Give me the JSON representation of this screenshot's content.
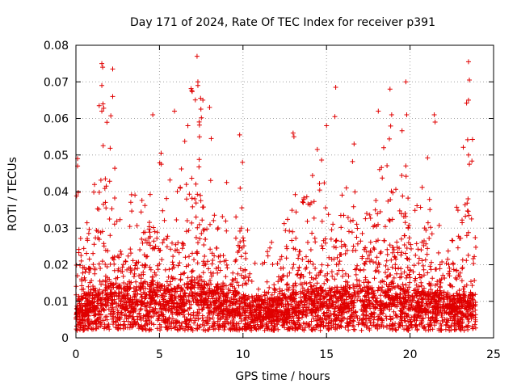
{
  "chart_data": {
    "type": "scatter",
    "title": "Day 171 of 2024, Rate Of TEC Index for receiver p391",
    "xlabel": "GPS time / hours",
    "ylabel": "ROTI / TECUs",
    "xlim": [
      0,
      25
    ],
    "ylim": [
      0,
      0.08
    ],
    "xticks": [
      0,
      5,
      10,
      15,
      20,
      25
    ],
    "yticks": [
      0,
      0.01,
      0.02,
      0.03,
      0.04,
      0.05,
      0.06,
      0.07,
      0.08
    ],
    "xtick_labels": [
      "0",
      "5",
      "10",
      "15",
      "20",
      "25"
    ],
    "ytick_labels": [
      "0",
      "0.01",
      "0.02",
      "0.03",
      "0.04",
      "0.05",
      "0.06",
      "0.07",
      "0.08"
    ],
    "grid": true,
    "marker": "+",
    "color": "#e00000",
    "x_range_of_data": [
      0,
      24
    ],
    "envelope": {
      "hours": [
        0,
        0.5,
        1,
        1.5,
        2,
        2.5,
        3,
        3.5,
        4,
        4.5,
        5,
        5.5,
        6,
        6.5,
        7,
        7.5,
        8,
        8.5,
        9,
        9.5,
        10,
        10.5,
        11,
        11.5,
        12,
        12.5,
        13,
        13.5,
        14,
        14.5,
        15,
        15.5,
        16,
        16.5,
        17,
        17.5,
        18,
        18.5,
        19,
        19.5,
        20,
        20.5,
        21,
        21.5,
        22,
        22.5,
        23,
        23.5,
        24
      ],
      "upper": [
        0.048,
        0.03,
        0.035,
        0.075,
        0.074,
        0.035,
        0.04,
        0.04,
        0.04,
        0.05,
        0.05,
        0.048,
        0.04,
        0.055,
        0.077,
        0.065,
        0.045,
        0.035,
        0.045,
        0.03,
        0.055,
        0.025,
        0.02,
        0.028,
        0.025,
        0.035,
        0.04,
        0.038,
        0.045,
        0.055,
        0.069,
        0.045,
        0.04,
        0.052,
        0.045,
        0.035,
        0.065,
        0.062,
        0.07,
        0.07,
        0.045,
        0.035,
        0.06,
        0.04,
        0.035,
        0.03,
        0.05,
        0.076,
        0.04
      ],
      "baseline": [
        0.005,
        0.006,
        0.007,
        0.008,
        0.009,
        0.009,
        0.008,
        0.008,
        0.009,
        0.01,
        0.009,
        0.008,
        0.008,
        0.009,
        0.01,
        0.01,
        0.009,
        0.008,
        0.007,
        0.007,
        0.006,
        0.005,
        0.005,
        0.005,
        0.005,
        0.006,
        0.007,
        0.007,
        0.007,
        0.008,
        0.008,
        0.008,
        0.008,
        0.009,
        0.009,
        0.008,
        0.008,
        0.009,
        0.009,
        0.008,
        0.008,
        0.007,
        0.007,
        0.007,
        0.007,
        0.007,
        0.006,
        0.006,
        0.006
      ]
    },
    "outliers": [
      [
        0.1,
        0.049
      ],
      [
        0.1,
        0.047
      ],
      [
        1.55,
        0.075
      ],
      [
        1.6,
        0.074
      ],
      [
        1.55,
        0.069
      ],
      [
        1.55,
        0.062
      ],
      [
        2.2,
        0.0735
      ],
      [
        2.2,
        0.066
      ],
      [
        4.6,
        0.061
      ],
      [
        5.1,
        0.0505
      ],
      [
        5.9,
        0.062
      ],
      [
        6.7,
        0.058
      ],
      [
        7.25,
        0.077
      ],
      [
        7.3,
        0.07
      ],
      [
        7.3,
        0.069
      ],
      [
        7.6,
        0.065
      ],
      [
        8.0,
        0.063
      ],
      [
        8.1,
        0.0545
      ],
      [
        9.8,
        0.0555
      ],
      [
        13.05,
        0.055
      ],
      [
        13.0,
        0.056
      ],
      [
        15.55,
        0.0685
      ],
      [
        15.5,
        0.0605
      ],
      [
        15.0,
        0.058
      ],
      [
        16.65,
        0.053
      ],
      [
        18.1,
        0.062
      ],
      [
        18.8,
        0.068
      ],
      [
        18.9,
        0.061
      ],
      [
        19.75,
        0.07
      ],
      [
        19.8,
        0.061
      ],
      [
        21.45,
        0.061
      ],
      [
        21.5,
        0.059
      ],
      [
        23.5,
        0.0755
      ],
      [
        23.55,
        0.0705
      ],
      [
        23.5,
        0.065
      ],
      [
        23.5,
        0.05
      ],
      [
        23.55,
        0.0475
      ]
    ]
  }
}
